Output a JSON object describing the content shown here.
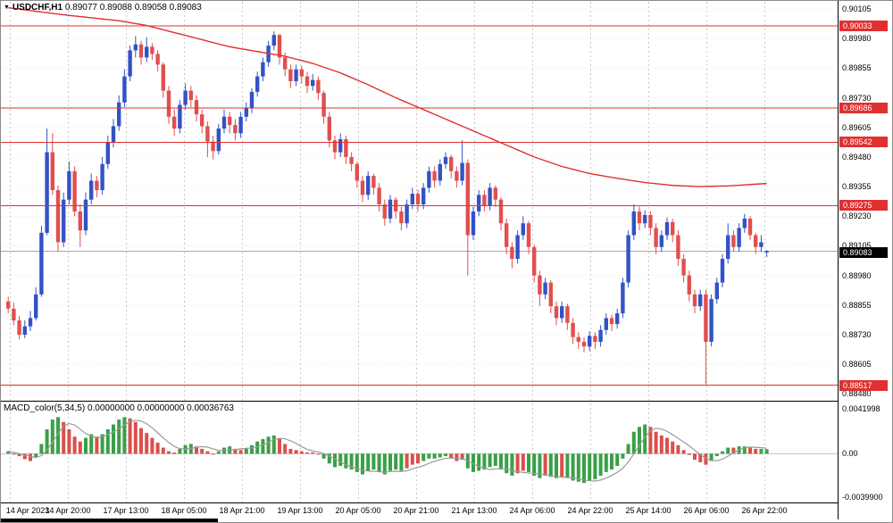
{
  "title": {
    "symbol_period": "USDCHF,H1",
    "ohlc": "0.89077 0.89088 0.89058 0.89083"
  },
  "icons": {
    "collapse_arrow": "▼"
  },
  "price_axis": {
    "max": 0.90135,
    "min": 0.88455,
    "labels": [
      "0.90105",
      "0.89980",
      "0.89855",
      "0.89730",
      "0.89605",
      "0.89480",
      "0.89355",
      "0.89230",
      "0.89105",
      "0.88980",
      "0.88855",
      "0.88730",
      "0.88605",
      "0.88480"
    ],
    "current": {
      "price": 0.89083,
      "label": "0.89083"
    }
  },
  "colors": {
    "background": "#ffffff",
    "up": "#3352c5",
    "down": "#e14f4f",
    "ma": "#e03030",
    "level": "#e03030",
    "bid_line": "#a8a8a8",
    "grid": "#c9c9c9",
    "hgrid": "#ececec",
    "macd_up": "#39a047",
    "macd_down": "#d8504d",
    "signal": "#9a9a9a",
    "tag_level_bg": "#e03030",
    "tag_current_bg": "#000000"
  },
  "chart_data": {
    "type": "candlestick",
    "title": "USDCHF,H1",
    "x_labels": [
      "14 Apr 2023",
      "14 Apr 20:00",
      "17 Apr 13:00",
      "18 Apr 05:00",
      "18 Apr 21:00",
      "19 Apr 13:00",
      "20 Apr 05:00",
      "20 Apr 21:00",
      "21 Apr 13:00",
      "24 Apr 06:00",
      "24 Apr 22:00",
      "25 Apr 14:00",
      "26 Apr 06:00",
      "26 Apr 22:00"
    ],
    "levels": [
      {
        "price": 0.90033,
        "label": "0.90033"
      },
      {
        "price": 0.89686,
        "label": "0.89686"
      },
      {
        "price": 0.89542,
        "label": "0.89542"
      },
      {
        "price": 0.89275,
        "label": "0.89275"
      },
      {
        "price": 0.88517,
        "label": "0.88517"
      }
    ],
    "bid": 0.89083,
    "candles": [
      [
        0.8887,
        0.8889,
        0.8882,
        0.8884
      ],
      [
        0.8884,
        0.88865,
        0.8877,
        0.8879
      ],
      [
        0.8879,
        0.8881,
        0.8871,
        0.8873
      ],
      [
        0.8873,
        0.8879,
        0.88715,
        0.88765
      ],
      [
        0.88765,
        0.8883,
        0.88745,
        0.888
      ],
      [
        0.888,
        0.8893,
        0.8879,
        0.889
      ],
      [
        0.889,
        0.8919,
        0.8889,
        0.8916
      ],
      [
        0.8916,
        0.896,
        0.8915,
        0.895
      ],
      [
        0.895,
        0.8958,
        0.8932,
        0.8934
      ],
      [
        0.8934,
        0.8936,
        0.8908,
        0.8912
      ],
      [
        0.8912,
        0.8933,
        0.891,
        0.893
      ],
      [
        0.893,
        0.8946,
        0.8928,
        0.8942
      ],
      [
        0.8942,
        0.8944,
        0.8923,
        0.8925
      ],
      [
        0.8925,
        0.8928,
        0.891,
        0.8917
      ],
      [
        0.8917,
        0.8933,
        0.8915,
        0.893
      ],
      [
        0.893,
        0.8941,
        0.8928,
        0.8938
      ],
      [
        0.8938,
        0.894,
        0.8931,
        0.8934
      ],
      [
        0.8934,
        0.8948,
        0.8932,
        0.8945
      ],
      [
        0.8945,
        0.8957,
        0.8943,
        0.8954
      ],
      [
        0.8954,
        0.8964,
        0.8952,
        0.8961
      ],
      [
        0.8961,
        0.8974,
        0.8959,
        0.8971
      ],
      [
        0.8971,
        0.8985,
        0.8969,
        0.8982
      ],
      [
        0.8982,
        0.8995,
        0.898,
        0.8993
      ],
      [
        0.8993,
        0.8999,
        0.899,
        0.89955
      ],
      [
        0.89955,
        0.8997,
        0.8987,
        0.899
      ],
      [
        0.899,
        0.89985,
        0.8988,
        0.89945
      ],
      [
        0.89945,
        0.8996,
        0.8989,
        0.89915
      ],
      [
        0.89915,
        0.8993,
        0.8984,
        0.8987
      ],
      [
        0.8987,
        0.8988,
        0.8973,
        0.8976
      ],
      [
        0.8976,
        0.8978,
        0.8962,
        0.8965
      ],
      [
        0.8965,
        0.8968,
        0.8957,
        0.896
      ],
      [
        0.896,
        0.8972,
        0.8958,
        0.897
      ],
      [
        0.897,
        0.8979,
        0.8968,
        0.8976
      ],
      [
        0.8976,
        0.8978,
        0.8969,
        0.8972
      ],
      [
        0.8972,
        0.8974,
        0.8963,
        0.8966
      ],
      [
        0.8966,
        0.8968,
        0.8958,
        0.8961
      ],
      [
        0.8961,
        0.8963,
        0.8948,
        0.89545
      ],
      [
        0.89545,
        0.8957,
        0.8947,
        0.89505
      ],
      [
        0.89505,
        0.8962,
        0.8949,
        0.896
      ],
      [
        0.896,
        0.8968,
        0.8958,
        0.8965
      ],
      [
        0.8965,
        0.8967,
        0.8958,
        0.89615
      ],
      [
        0.89615,
        0.8964,
        0.8955,
        0.8958
      ],
      [
        0.8958,
        0.8967,
        0.8956,
        0.8965
      ],
      [
        0.8965,
        0.8971,
        0.8963,
        0.89685
      ],
      [
        0.89685,
        0.8977,
        0.89665,
        0.89755
      ],
      [
        0.89755,
        0.8984,
        0.89735,
        0.8982
      ],
      [
        0.8982,
        0.899,
        0.898,
        0.8988
      ],
      [
        0.8988,
        0.8997,
        0.8986,
        0.8995
      ],
      [
        0.8995,
        0.9001,
        0.8993,
        0.89995
      ],
      [
        0.89995,
        0.9,
        0.8987,
        0.899
      ],
      [
        0.899,
        0.8992,
        0.8982,
        0.8985
      ],
      [
        0.8985,
        0.8987,
        0.8977,
        0.898
      ],
      [
        0.898,
        0.8987,
        0.8978,
        0.8985
      ],
      [
        0.8985,
        0.89865,
        0.8979,
        0.8982
      ],
      [
        0.8982,
        0.8984,
        0.8975,
        0.8978
      ],
      [
        0.8978,
        0.8983,
        0.8976,
        0.89805
      ],
      [
        0.89805,
        0.8982,
        0.8972,
        0.8975
      ],
      [
        0.8975,
        0.8976,
        0.8962,
        0.8965
      ],
      [
        0.8965,
        0.8967,
        0.8952,
        0.8955
      ],
      [
        0.8955,
        0.8957,
        0.8947,
        0.895
      ],
      [
        0.895,
        0.8958,
        0.8948,
        0.89555
      ],
      [
        0.89555,
        0.8957,
        0.8945,
        0.8948
      ],
      [
        0.8948,
        0.895,
        0.8942,
        0.8945
      ],
      [
        0.8945,
        0.8946,
        0.8935,
        0.8938
      ],
      [
        0.8938,
        0.894,
        0.8929,
        0.8932
      ],
      [
        0.8932,
        0.8942,
        0.893,
        0.894
      ],
      [
        0.894,
        0.8941,
        0.8932,
        0.8935
      ],
      [
        0.8935,
        0.8937,
        0.8925,
        0.8928
      ],
      [
        0.8928,
        0.893,
        0.8919,
        0.8922
      ],
      [
        0.8922,
        0.8932,
        0.892,
        0.893
      ],
      [
        0.893,
        0.8931,
        0.8922,
        0.8925
      ],
      [
        0.8925,
        0.8927,
        0.8917,
        0.892
      ],
      [
        0.892,
        0.893,
        0.8918,
        0.8928
      ],
      [
        0.8928,
        0.8935,
        0.8926,
        0.89325
      ],
      [
        0.89325,
        0.8934,
        0.8925,
        0.8928
      ],
      [
        0.8928,
        0.8937,
        0.8926,
        0.8935
      ],
      [
        0.8935,
        0.8944,
        0.8933,
        0.8942
      ],
      [
        0.8942,
        0.8944,
        0.8935,
        0.8938
      ],
      [
        0.8938,
        0.8947,
        0.8936,
        0.8945
      ],
      [
        0.8945,
        0.895,
        0.8943,
        0.8948
      ],
      [
        0.8948,
        0.8949,
        0.8939,
        0.8942
      ],
      [
        0.8942,
        0.8944,
        0.8935,
        0.8938
      ],
      [
        0.8938,
        0.8955,
        0.8936,
        0.89455
      ],
      [
        0.89455,
        0.8947,
        0.8898,
        0.8915
      ],
      [
        0.8915,
        0.8927,
        0.8913,
        0.8925
      ],
      [
        0.8925,
        0.8934,
        0.8923,
        0.8932
      ],
      [
        0.8932,
        0.8934,
        0.8925,
        0.89275
      ],
      [
        0.89275,
        0.8937,
        0.89255,
        0.8935
      ],
      [
        0.8935,
        0.8936,
        0.8927,
        0.893
      ],
      [
        0.893,
        0.8931,
        0.8917,
        0.892
      ],
      [
        0.892,
        0.8922,
        0.8907,
        0.891
      ],
      [
        0.891,
        0.8912,
        0.8901,
        0.8905
      ],
      [
        0.8905,
        0.8917,
        0.8903,
        0.8915
      ],
      [
        0.8915,
        0.8923,
        0.8913,
        0.892
      ],
      [
        0.892,
        0.8921,
        0.8907,
        0.891
      ],
      [
        0.891,
        0.8911,
        0.8895,
        0.8898
      ],
      [
        0.8898,
        0.89,
        0.8885,
        0.889
      ],
      [
        0.889,
        0.8897,
        0.8888,
        0.8895
      ],
      [
        0.8895,
        0.8896,
        0.8882,
        0.8885
      ],
      [
        0.8885,
        0.8887,
        0.8877,
        0.888
      ],
      [
        0.888,
        0.8887,
        0.8878,
        0.8885
      ],
      [
        0.8885,
        0.8886,
        0.8875,
        0.8878
      ],
      [
        0.8878,
        0.888,
        0.8869,
        0.8872
      ],
      [
        0.8872,
        0.8874,
        0.8867,
        0.887
      ],
      [
        0.887,
        0.8872,
        0.88655,
        0.8868
      ],
      [
        0.8868,
        0.88745,
        0.8866,
        0.88725
      ],
      [
        0.88725,
        0.8874,
        0.8867,
        0.887
      ],
      [
        0.887,
        0.8877,
        0.8868,
        0.8875
      ],
      [
        0.8875,
        0.8882,
        0.8873,
        0.888
      ],
      [
        0.888,
        0.88815,
        0.88745,
        0.88775
      ],
      [
        0.88775,
        0.8884,
        0.88755,
        0.8882
      ],
      [
        0.8882,
        0.8897,
        0.888,
        0.8895
      ],
      [
        0.8895,
        0.8917,
        0.8893,
        0.8915
      ],
      [
        0.8915,
        0.8928,
        0.8913,
        0.8925
      ],
      [
        0.8925,
        0.8927,
        0.8917,
        0.892
      ],
      [
        0.892,
        0.89255,
        0.8918,
        0.89235
      ],
      [
        0.89235,
        0.8925,
        0.8915,
        0.8918
      ],
      [
        0.8918,
        0.892,
        0.8907,
        0.891
      ],
      [
        0.891,
        0.8917,
        0.8908,
        0.8915
      ],
      [
        0.8915,
        0.89225,
        0.8913,
        0.89205
      ],
      [
        0.89205,
        0.8922,
        0.8912,
        0.8915
      ],
      [
        0.8915,
        0.8917,
        0.8902,
        0.8905
      ],
      [
        0.8905,
        0.8907,
        0.8895,
        0.8898
      ],
      [
        0.8898,
        0.89,
        0.8887,
        0.889
      ],
      [
        0.889,
        0.8892,
        0.8882,
        0.8885
      ],
      [
        0.8885,
        0.8892,
        0.8883,
        0.889
      ],
      [
        0.889,
        0.8892,
        0.8852,
        0.887
      ],
      [
        0.887,
        0.889,
        0.8868,
        0.8888
      ],
      [
        0.8888,
        0.8897,
        0.8886,
        0.8895
      ],
      [
        0.8895,
        0.8907,
        0.8893,
        0.8905
      ],
      [
        0.8905,
        0.892,
        0.8903,
        0.8915
      ],
      [
        0.8915,
        0.8917,
        0.8908,
        0.891
      ],
      [
        0.891,
        0.892,
        0.8908,
        0.8918
      ],
      [
        0.8918,
        0.8924,
        0.8916,
        0.8922
      ],
      [
        0.8922,
        0.8923,
        0.8913,
        0.8915
      ],
      [
        0.8915,
        0.8916,
        0.8907,
        0.891
      ],
      [
        0.891,
        0.8915,
        0.8908,
        0.8912
      ],
      [
        0.89077,
        0.89088,
        0.89058,
        0.89083
      ]
    ],
    "ma_waypoints": [
      [
        0,
        0.9011
      ],
      [
        10,
        0.9008
      ],
      [
        20,
        0.90055
      ],
      [
        25,
        0.90035
      ],
      [
        30,
        0.90005
      ],
      [
        35,
        0.89975
      ],
      [
        40,
        0.89945
      ],
      [
        45,
        0.89925
      ],
      [
        50,
        0.89905
      ],
      [
        55,
        0.89875
      ],
      [
        60,
        0.89835
      ],
      [
        65,
        0.89785
      ],
      [
        70,
        0.8973
      ],
      [
        75,
        0.8968
      ],
      [
        80,
        0.8963
      ],
      [
        85,
        0.8958
      ],
      [
        90,
        0.8953
      ],
      [
        95,
        0.8948
      ],
      [
        100,
        0.8944
      ],
      [
        105,
        0.8941
      ],
      [
        110,
        0.8939
      ],
      [
        115,
        0.89372
      ],
      [
        120,
        0.8936
      ],
      [
        125,
        0.89355
      ],
      [
        130,
        0.89358
      ],
      [
        137,
        0.89368
      ]
    ],
    "macd": {
      "name": "MACD_color(5,34,5)",
      "display_values": "0.00000000 0.00000000 0.00036763",
      "axis_max": 0.0042,
      "axis_min": -0.004,
      "axis_labels": [
        "0.0041998",
        "0.00",
        "-0.0039900"
      ],
      "values": [
        0.0002,
        0,
        -0.0002,
        -0.00045,
        -0.0006,
        -0.0003,
        0.0008,
        0.002,
        0.0028,
        0.003,
        0.0026,
        0.002,
        0.0014,
        0.001,
        0.0013,
        0.0016,
        0.0014,
        0.0016,
        0.002,
        0.0024,
        0.0028,
        0.003,
        0.0029,
        0.0026,
        0.0021,
        0.0017,
        0.0013,
        0.0009,
        0.0005,
        0.0002,
        0.0001,
        0.0004,
        0.0007,
        0.0008,
        0.0006,
        0.0004,
        0.0002,
        0,
        0.0002,
        0.0005,
        0.0006,
        0.0004,
        0.0003,
        0.0004,
        0.0007,
        0.001,
        0.0012,
        0.0014,
        0.0015,
        0.0012,
        0.0008,
        0.0004,
        0.0003,
        0.0002,
        0.0001,
        0.0001,
        0,
        -0.0004,
        -0.0008,
        -0.0011,
        -0.001,
        -0.0012,
        -0.0013,
        -0.0015,
        -0.0017,
        -0.0014,
        -0.0013,
        -0.0015,
        -0.0017,
        -0.0014,
        -0.0013,
        -0.0014,
        -0.0012,
        -0.0009,
        -0.0008,
        -0.0006,
        -0.0004,
        -0.0004,
        -0.0003,
        -0.0002,
        -0.0004,
        -0.0006,
        -0.0005,
        -0.0012,
        -0.0015,
        -0.0014,
        -0.0013,
        -0.0011,
        -0.001,
        -0.0013,
        -0.0016,
        -0.0018,
        -0.0016,
        -0.0014,
        -0.0015,
        -0.0018,
        -0.002,
        -0.0018,
        -0.0019,
        -0.002,
        -0.0019,
        -0.002,
        -0.0022,
        -0.0023,
        -0.0024,
        -0.0022,
        -0.0021,
        -0.0018,
        -0.0015,
        -0.0013,
        -0.001,
        -0.0004,
        0.0008,
        0.0018,
        0.0022,
        0.0024,
        0.0022,
        0.0018,
        0.0015,
        0.0013,
        0.001,
        0.0007,
        0.0003,
        -0.0001,
        -0.0005,
        -0.0007,
        -0.0009,
        -0.0006,
        -0.0002,
        0.0002,
        0.0005,
        0.0005,
        0.0006,
        0.0006,
        0.0005,
        0.0004,
        0.0004,
        0.00037
      ],
      "bar_colors": "grrrrgggggrrrrggrgggggrrrrrrrrrgggrrrrgggrrggggggrrrrrrrrgggggggggggggggrrrgggggrrrgggggggggrrgggrggrgggggggggggggggrrrrrrrrrrrggggrggrrgg"
    }
  }
}
